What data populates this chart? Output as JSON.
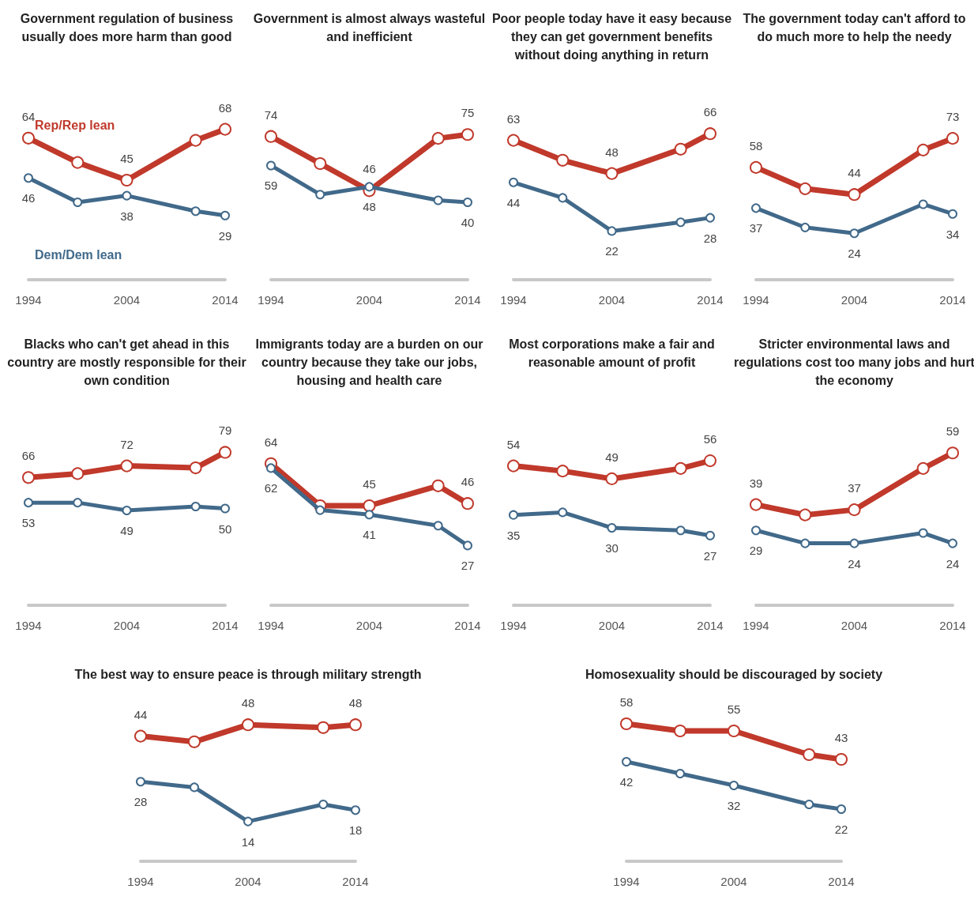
{
  "chart_data": [
    {
      "type": "line",
      "title": "Government regulation of business usually does more harm than good",
      "x": [
        1994,
        1999,
        2004,
        2011,
        2014
      ],
      "xlim": [
        1994,
        2014
      ],
      "xticks": [
        1994,
        2004,
        2014
      ],
      "tick_labels": "x",
      "marker": "circle",
      "legend": false,
      "grid": false,
      "series": [
        {
          "name": "Rep/Rep lean",
          "color": "#c0392b",
          "values": [
            64,
            53,
            45,
            63,
            68
          ],
          "value_labels": [
            "64",
            null,
            "45",
            null,
            "68"
          ]
        },
        {
          "name": "Dem/Dem lean",
          "color": "#41698a",
          "values": [
            46,
            35,
            38,
            31,
            29
          ],
          "value_labels": [
            "46",
            null,
            "38",
            null,
            "29"
          ]
        }
      ]
    },
    {
      "type": "line",
      "title": "Government is almost always wasteful and inefficient",
      "x": [
        1994,
        1999,
        2004,
        2011,
        2014
      ],
      "xlim": [
        1994,
        2014
      ],
      "xticks": [
        1994,
        2004,
        2014
      ],
      "tick_labels": "x",
      "marker": "circle",
      "legend": false,
      "grid": false,
      "series": [
        {
          "color": "#c0392b",
          "values": [
            74,
            60,
            46,
            73,
            75
          ],
          "value_labels": [
            "74",
            null,
            "46",
            null,
            "75"
          ]
        },
        {
          "color": "#41698a",
          "values": [
            59,
            44,
            48,
            41,
            40
          ],
          "value_labels": [
            "59",
            null,
            "48",
            null,
            "40"
          ]
        }
      ]
    },
    {
      "type": "line",
      "title": "Poor people today have it easy because they can get government benefits without doing anything in return",
      "x": [
        1994,
        1999,
        2004,
        2011,
        2014
      ],
      "xlim": [
        1994,
        2014
      ],
      "xticks": [
        1994,
        2004,
        2014
      ],
      "tick_labels": "x",
      "marker": "circle",
      "legend": false,
      "grid": false,
      "series": [
        {
          "color": "#c0392b",
          "values": [
            63,
            54,
            48,
            59,
            66
          ],
          "value_labels": [
            "63",
            null,
            "48",
            null,
            "66"
          ]
        },
        {
          "color": "#41698a",
          "values": [
            44,
            37,
            22,
            26,
            28
          ],
          "value_labels": [
            "44",
            null,
            "22",
            null,
            "28"
          ]
        }
      ]
    },
    {
      "type": "line",
      "title": "The government today can't afford to do much more to help the needy",
      "x": [
        1994,
        1999,
        2004,
        2011,
        2014
      ],
      "xlim": [
        1994,
        2014
      ],
      "xticks": [
        1994,
        2004,
        2014
      ],
      "tick_labels": "x",
      "marker": "circle",
      "legend": false,
      "grid": false,
      "series": [
        {
          "color": "#c0392b",
          "values": [
            58,
            47,
            44,
            67,
            73
          ],
          "value_labels": [
            "58",
            null,
            "44",
            null,
            "73"
          ]
        },
        {
          "color": "#41698a",
          "values": [
            37,
            27,
            24,
            39,
            34
          ],
          "value_labels": [
            "37",
            null,
            "24",
            null,
            "34"
          ]
        }
      ]
    },
    {
      "type": "line",
      "title": "Blacks who can't get ahead in this country are mostly responsible for their own condition",
      "x": [
        1994,
        1999,
        2004,
        2011,
        2014
      ],
      "xlim": [
        1994,
        2014
      ],
      "xticks": [
        1994,
        2004,
        2014
      ],
      "tick_labels": "x",
      "marker": "circle",
      "legend": false,
      "grid": false,
      "series": [
        {
          "color": "#c0392b",
          "values": [
            66,
            68,
            72,
            71,
            79
          ],
          "value_labels": [
            "66",
            null,
            "72",
            null,
            "79"
          ]
        },
        {
          "color": "#41698a",
          "values": [
            53,
            53,
            49,
            51,
            50
          ],
          "value_labels": [
            "53",
            null,
            "49",
            null,
            "50"
          ]
        }
      ]
    },
    {
      "type": "line",
      "title": "Immigrants today are a burden on our country because they take our jobs, housing and health care",
      "x": [
        1994,
        1999,
        2004,
        2011,
        2014
      ],
      "xlim": [
        1994,
        2014
      ],
      "xticks": [
        1994,
        2004,
        2014
      ],
      "tick_labels": "x",
      "marker": "circle",
      "legend": false,
      "grid": false,
      "series": [
        {
          "color": "#c0392b",
          "values": [
            64,
            45,
            45,
            54,
            46
          ],
          "value_labels": [
            "64",
            null,
            "45",
            null,
            "46"
          ]
        },
        {
          "color": "#41698a",
          "values": [
            62,
            43,
            41,
            36,
            27
          ],
          "value_labels": [
            "62",
            null,
            "41",
            null,
            "27"
          ]
        }
      ]
    },
    {
      "type": "line",
      "title": "Most corporations make a fair and reasonable amount of profit",
      "x": [
        1994,
        1999,
        2004,
        2011,
        2014
      ],
      "xlim": [
        1994,
        2014
      ],
      "xticks": [
        1994,
        2004,
        2014
      ],
      "tick_labels": "x",
      "marker": "circle",
      "legend": false,
      "grid": false,
      "series": [
        {
          "color": "#c0392b",
          "values": [
            54,
            52,
            49,
            53,
            56
          ],
          "value_labels": [
            "54",
            null,
            "49",
            null,
            "56"
          ]
        },
        {
          "color": "#41698a",
          "values": [
            35,
            36,
            30,
            29,
            27
          ],
          "value_labels": [
            "35",
            null,
            "30",
            null,
            "27"
          ]
        }
      ]
    },
    {
      "type": "line",
      "title": "Stricter environmental laws and regulations cost too many jobs and hurt the economy",
      "x": [
        1994,
        1999,
        2004,
        2011,
        2014
      ],
      "xlim": [
        1994,
        2014
      ],
      "xticks": [
        1994,
        2004,
        2014
      ],
      "tick_labels": "x",
      "marker": "circle",
      "legend": false,
      "grid": false,
      "series": [
        {
          "color": "#c0392b",
          "values": [
            39,
            35,
            37,
            53,
            59
          ],
          "value_labels": [
            "39",
            null,
            "37",
            null,
            "59"
          ]
        },
        {
          "color": "#41698a",
          "values": [
            29,
            24,
            24,
            28,
            24
          ],
          "value_labels": [
            "29",
            null,
            "24",
            null,
            "24"
          ]
        }
      ]
    },
    {
      "type": "line",
      "title": "The best way to ensure peace is through military strength",
      "x": [
        1994,
        1999,
        2004,
        2011,
        2014
      ],
      "xlim": [
        1994,
        2014
      ],
      "xticks": [
        1994,
        2004,
        2014
      ],
      "tick_labels": "x",
      "marker": "circle",
      "legend": false,
      "grid": false,
      "series": [
        {
          "color": "#c0392b",
          "values": [
            44,
            42,
            48,
            47,
            48
          ],
          "value_labels": [
            "44",
            null,
            "48",
            null,
            "48"
          ]
        },
        {
          "color": "#41698a",
          "values": [
            28,
            26,
            14,
            20,
            18
          ],
          "value_labels": [
            "28",
            null,
            "14",
            null,
            "18"
          ]
        }
      ]
    },
    {
      "type": "line",
      "title": "Homosexuality should be discouraged by society",
      "x": [
        1994,
        1999,
        2004,
        2011,
        2014
      ],
      "xlim": [
        1994,
        2014
      ],
      "xticks": [
        1994,
        2004,
        2014
      ],
      "tick_labels": "x",
      "marker": "circle",
      "legend": false,
      "grid": false,
      "series": [
        {
          "color": "#c0392b",
          "values": [
            58,
            55,
            55,
            45,
            43
          ],
          "value_labels": [
            "58",
            null,
            "55",
            null,
            "43"
          ]
        },
        {
          "color": "#41698a",
          "values": [
            42,
            37,
            32,
            24,
            22
          ],
          "value_labels": [
            "42",
            null,
            "32",
            null,
            "22"
          ]
        }
      ]
    }
  ]
}
